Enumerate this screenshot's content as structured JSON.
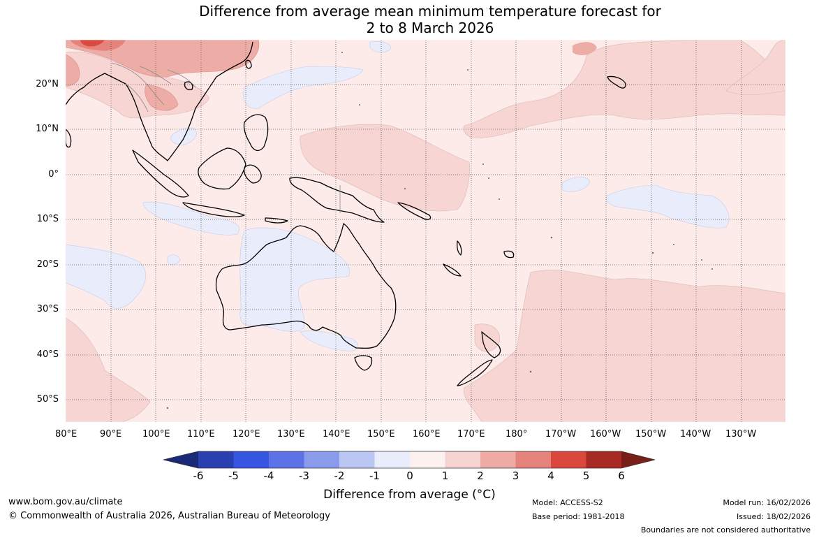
{
  "title": {
    "line1": "Difference from average mean minimum temperature forecast for",
    "line2": "2 to 8 March 2026"
  },
  "map": {
    "lat_labels": [
      "20°N",
      "10°N",
      "0°",
      "10°S",
      "20°S",
      "30°S",
      "40°S",
      "50°S"
    ],
    "lon_labels": [
      "80°E",
      "90°E",
      "100°E",
      "110°E",
      "120°E",
      "130°E",
      "140°E",
      "150°E",
      "160°E",
      "170°E",
      "180°",
      "170°W",
      "160°W",
      "150°W",
      "140°W",
      "130°W"
    ],
    "colors": {
      "neg_0_1": "#e8ecfb",
      "pos_0_1": "#fcebe9",
      "pos_1_2": "#f6d5d3",
      "pos_2_3": "#eeaca7",
      "pos_3_4": "#e4847d",
      "pos_4_5": "#d94a40"
    }
  },
  "colorbar": {
    "ticks": [
      "-6",
      "-5",
      "-4",
      "-3",
      "-2",
      "-1",
      "0",
      "1",
      "2",
      "3",
      "4",
      "5",
      "6"
    ],
    "colors": [
      "#1b2a78",
      "#2a3fb0",
      "#3655e0",
      "#5c72e6",
      "#8a9bec",
      "#bcc6f3",
      "#e9edfb",
      "#fdf1f0",
      "#f6d3d0",
      "#eeaaa5",
      "#e4837c",
      "#d9473d",
      "#a82a24",
      "#7a1e19"
    ],
    "label": "Difference from average (°C)"
  },
  "footer": {
    "website": "www.bom.gov.au/climate",
    "copyright": "© Commonwealth of Australia 2026, Australian Bureau of Meteorology",
    "model": "Model: ACCESS-S2",
    "base_period": "Base period: 1981-2018",
    "model_run": "Model run: 16/02/2026",
    "issued": "Issued: 18/02/2026",
    "boundaries": "Boundaries are not considered authoritative"
  }
}
